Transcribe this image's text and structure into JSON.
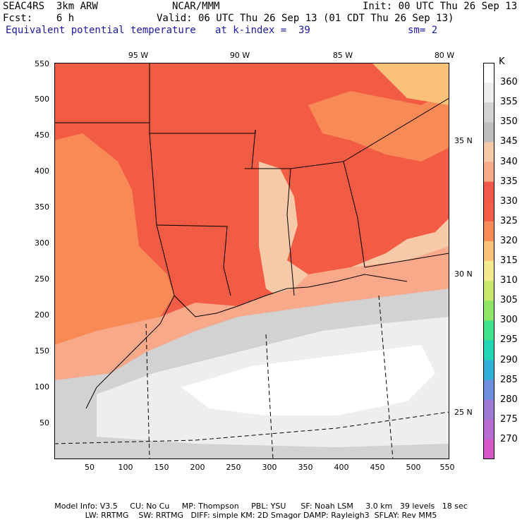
{
  "header": {
    "model": "SEAC4RS  3km ARW",
    "org": "NCAR/MMM",
    "init": "Init: 00 UTC Thu 26 Sep 13",
    "fcst": "Fcst:    6 h",
    "valid": "Valid: 06 UTC Thu 26 Sep 13 (01 CDT Thu 26 Sep 13)",
    "field": "Equivalent potential temperature",
    "level": "at k-index =  39",
    "smooth": "sm= 2"
  },
  "axes": {
    "y_ticks": [
      "550",
      "500",
      "450",
      "400",
      "350",
      "300",
      "250",
      "200",
      "150",
      "100",
      "50"
    ],
    "x_ticks": [
      "50",
      "100",
      "150",
      "200",
      "250",
      "300",
      "350",
      "400",
      "450",
      "500",
      "550"
    ],
    "lon_labels": [
      "95 W",
      "90 W",
      "85 W",
      "80 W"
    ],
    "lat_labels": [
      "35 N",
      "30 N",
      "25 N"
    ]
  },
  "colorbar": {
    "unit": "K",
    "levels": [
      "360",
      "355",
      "350",
      "345",
      "340",
      "335",
      "330",
      "325",
      "320",
      "315",
      "310",
      "305",
      "300",
      "295",
      "290",
      "285",
      "280",
      "275",
      "270"
    ],
    "colors": [
      "#ffffff",
      "#eeeeee",
      "#d2d2d2",
      "#bebebe",
      "#f6c9a8",
      "#f7a98a",
      "#f1584a",
      "#f25c44",
      "#f78a55",
      "#f9c278",
      "#f4e98c",
      "#c8e86c",
      "#8ee566",
      "#3fe38c",
      "#22d5b5",
      "#2fb0d8",
      "#6e8ee0",
      "#9b7bd6",
      "#b86bd0",
      "#d456c8"
    ]
  },
  "footer": {
    "line1": "Model Info: V3.5     CU: No Cu     MP: Thompson     PBL: YSU      SF: Noah LSM     3.0 km   39 levels   18 sec",
    "line2": "LW: RRTMG    SW: RRTMG   DIFF: simple KM: 2D Smagor DAMP: Rayleigh3  SFLAY: Rev MM5"
  }
}
